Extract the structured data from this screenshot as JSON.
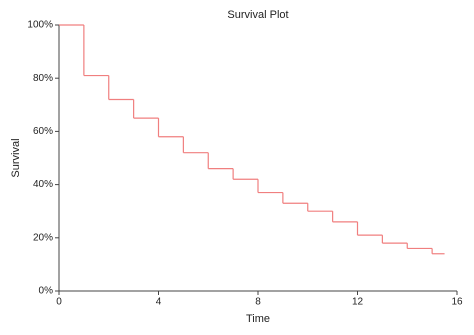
{
  "chart_data": {
    "type": "step",
    "title": "Survival Plot",
    "xlabel": "Time",
    "ylabel": "Survival",
    "x": [
      0,
      1,
      2,
      3,
      4,
      5,
      6,
      7,
      8,
      9,
      10,
      11,
      12,
      13,
      14,
      15,
      15.5
    ],
    "values": [
      100,
      81,
      72,
      65,
      58,
      52,
      46,
      42,
      37,
      33,
      30,
      26,
      21,
      18,
      16,
      14,
      14
    ],
    "color": "#f07f7f",
    "xlim": [
      0,
      16
    ],
    "xticks": [
      0,
      4,
      8,
      12,
      16
    ],
    "ylim": [
      0,
      100
    ],
    "yticks": [
      {
        "value": 0,
        "label": "0%"
      },
      {
        "value": 20,
        "label": "20%"
      },
      {
        "value": 40,
        "label": "40%"
      },
      {
        "value": 60,
        "label": "60%"
      },
      {
        "value": 80,
        "label": "80%"
      },
      {
        "value": 100,
        "label": "100%"
      }
    ]
  }
}
